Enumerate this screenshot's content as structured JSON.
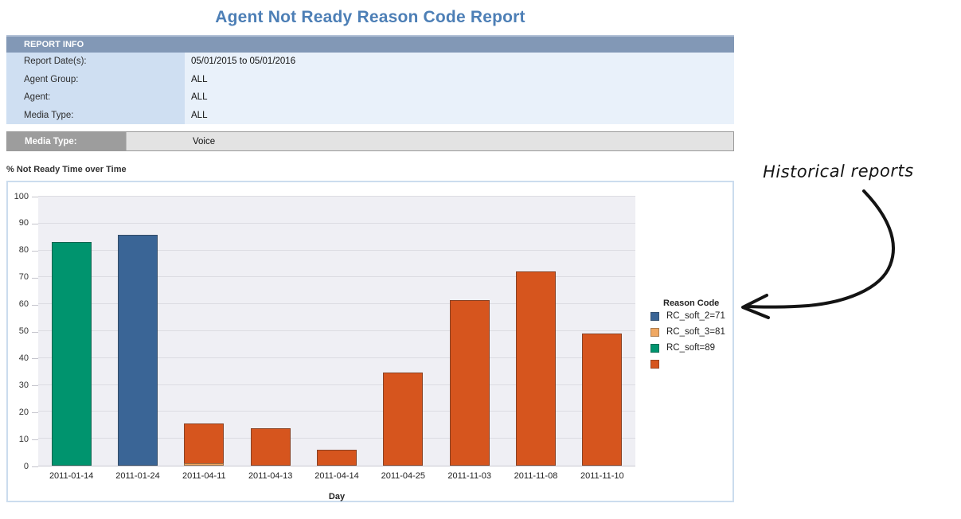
{
  "page": {
    "title": "Agent Not Ready Reason Code Report"
  },
  "report_info": {
    "header": "REPORT INFO",
    "rows": [
      {
        "label": "Report Date(s):",
        "value": "05/01/2015 to 05/01/2016"
      },
      {
        "label": "Agent Group:",
        "value": "ALL"
      },
      {
        "label": "Agent:",
        "value": "ALL"
      },
      {
        "label": "Media Type:",
        "value": "ALL"
      }
    ]
  },
  "media_type_bar": {
    "label": "Media Type:",
    "value": "Voice"
  },
  "chart_data": {
    "type": "bar",
    "stacked": true,
    "title": "% Not Ready Time over Time",
    "xlabel": "Day",
    "ylabel": "",
    "ylim": [
      0,
      100
    ],
    "ytick_step": 10,
    "grid": true,
    "plot_bg": "#efeff4",
    "legend_title": "Reason Code",
    "legend_position": "right",
    "categories": [
      "2011-01-14",
      "2011-01-24",
      "2011-04-11",
      "2011-04-13",
      "2011-04-14",
      "2011-04-25",
      "2011-11-03",
      "2011-11-08",
      "2011-11-10"
    ],
    "series": [
      {
        "name": "RC_soft_2=71",
        "color": "#3a6596",
        "values": [
          0,
          85.5,
          0,
          0,
          0,
          0,
          0,
          0,
          0
        ]
      },
      {
        "name": "RC_soft_3=81",
        "color": "#f0a862",
        "values": [
          0,
          0,
          1,
          0,
          0,
          0,
          0,
          0,
          0
        ]
      },
      {
        "name": "RC_soft=89",
        "color": "#00946e",
        "values": [
          83,
          0,
          0,
          0,
          0,
          0,
          0,
          0,
          0
        ]
      },
      {
        "name": "",
        "color": "#d6551e",
        "values": [
          0,
          0,
          14.5,
          14,
          6,
          34.5,
          61.5,
          72,
          49
        ]
      }
    ]
  },
  "annotation": {
    "text": "Historical reports"
  },
  "colors": {
    "title_text": "#4d7fb6",
    "report_header_bg": "#8298b6",
    "report_label_bg": "#cfdff2",
    "report_body_bg": "#e9f1fa",
    "media_label_bg": "#9d9d9d",
    "media_value_bg": "#e3e3e3",
    "chart_border": "#cbdcee"
  }
}
